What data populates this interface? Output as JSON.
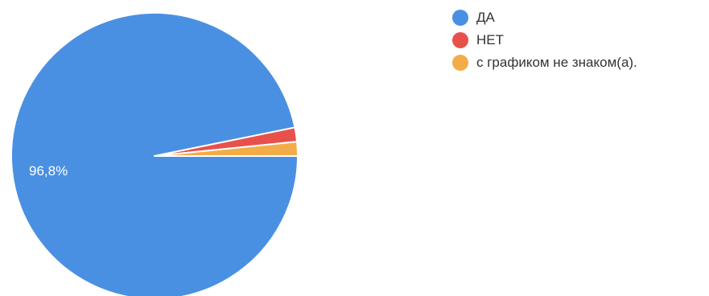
{
  "chart_data": {
    "type": "pie",
    "categories": [
      "ДА",
      "НЕТ",
      "с графиком не знаком(а)."
    ],
    "values": [
      96.8,
      1.6,
      1.6
    ],
    "colors": [
      "#4a90e2",
      "#e8514b",
      "#f3ad48"
    ],
    "data_labels": [
      "96,8%",
      "",
      ""
    ],
    "legend_position": "top-right"
  }
}
